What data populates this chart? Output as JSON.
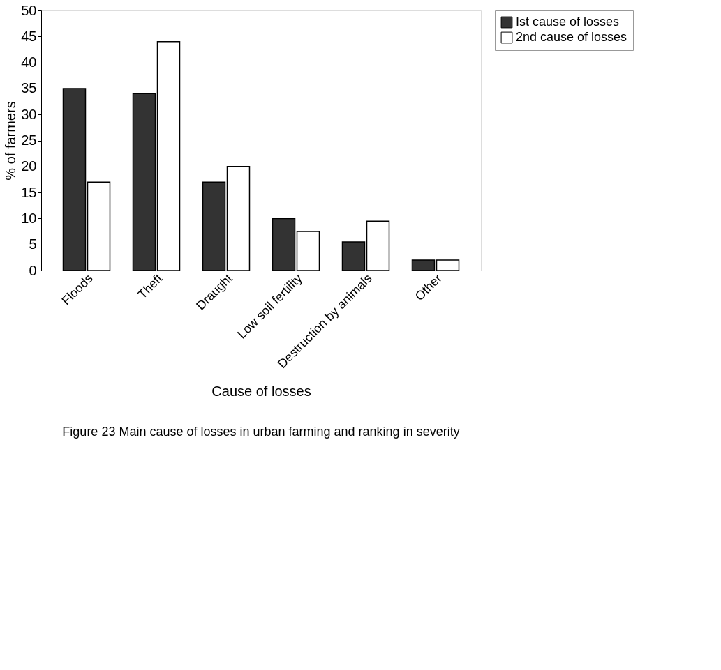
{
  "chart_data": {
    "type": "bar",
    "title": "Figure 23  Main cause of losses in urban farming and ranking in severity",
    "xlabel": "Cause of losses",
    "ylabel": "% of farmers",
    "categories": [
      "Floods",
      "Theft",
      "Draught",
      "Low soil fertility",
      "Destruction by animals",
      "Other"
    ],
    "series": [
      {
        "name": "Ist cause of losses",
        "color": "#333333",
        "values": [
          35,
          34,
          17,
          10,
          5.5,
          2
        ]
      },
      {
        "name": "2nd cause of losses",
        "color": "#ffffff",
        "values": [
          17,
          44,
          20,
          7.5,
          9.5,
          2
        ]
      }
    ],
    "ylim": [
      0,
      50
    ],
    "yticks": [
      0,
      5,
      10,
      15,
      20,
      25,
      30,
      35,
      40,
      45,
      50
    ],
    "grid": false,
    "legend": "right"
  }
}
